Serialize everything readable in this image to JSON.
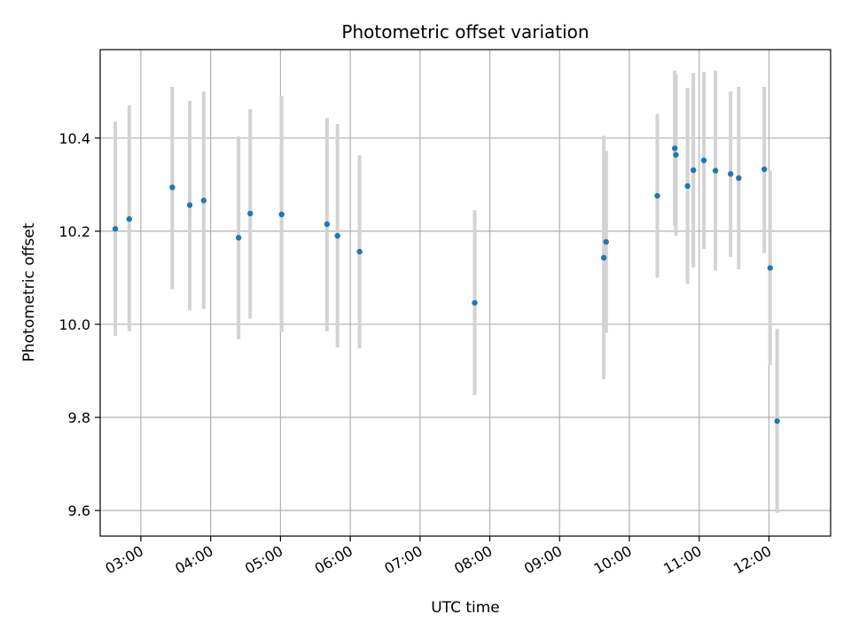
{
  "chart_data": {
    "type": "scatter",
    "title": "Photometric offset variation",
    "xlabel": "UTC time",
    "ylabel": "Photometric offset",
    "x_unit": "UTC hours",
    "xlim": [
      "02:25",
      "12:53"
    ],
    "ylim": [
      9.545,
      10.59
    ],
    "grid": true,
    "x_ticks": [
      "03:00",
      "04:00",
      "05:00",
      "06:00",
      "07:00",
      "08:00",
      "09:00",
      "10:00",
      "11:00",
      "12:00"
    ],
    "y_ticks": [
      "9.6",
      "9.8",
      "10.0",
      "10.2",
      "10.4"
    ],
    "colors": {
      "point": "#1f77b4",
      "errorbar": "#d3d3d3",
      "grid": "#b0b0b0"
    },
    "points": [
      {
        "x": "02:38",
        "y": 10.205,
        "ylow": 9.975,
        "yhigh": 10.435
      },
      {
        "x": "02:50",
        "y": 10.226,
        "ylow": 9.985,
        "yhigh": 10.47
      },
      {
        "x": "03:27",
        "y": 10.294,
        "ylow": 10.075,
        "yhigh": 10.51
      },
      {
        "x": "03:42",
        "y": 10.256,
        "ylow": 10.03,
        "yhigh": 10.48
      },
      {
        "x": "03:54",
        "y": 10.266,
        "ylow": 10.033,
        "yhigh": 10.5
      },
      {
        "x": "04:24",
        "y": 10.186,
        "ylow": 9.968,
        "yhigh": 10.404
      },
      {
        "x": "04:34",
        "y": 10.238,
        "ylow": 10.012,
        "yhigh": 10.462
      },
      {
        "x": "05:01",
        "y": 10.236,
        "ylow": 9.983,
        "yhigh": 10.49
      },
      {
        "x": "05:40",
        "y": 10.215,
        "ylow": 9.985,
        "yhigh": 10.443
      },
      {
        "x": "05:49",
        "y": 10.19,
        "ylow": 9.95,
        "yhigh": 10.43
      },
      {
        "x": "06:08",
        "y": 10.156,
        "ylow": 9.948,
        "yhigh": 10.363
      },
      {
        "x": "07:47",
        "y": 10.046,
        "ylow": 9.848,
        "yhigh": 10.245
      },
      {
        "x": "09:38",
        "y": 10.143,
        "ylow": 9.882,
        "yhigh": 10.405
      },
      {
        "x": "09:40",
        "y": 10.177,
        "ylow": 9.982,
        "yhigh": 10.372
      },
      {
        "x": "10:24",
        "y": 10.276,
        "ylow": 10.1,
        "yhigh": 10.452
      },
      {
        "x": "10:39",
        "y": 10.378,
        "ylow": 10.212,
        "yhigh": 10.545
      },
      {
        "x": "10:40",
        "y": 10.364,
        "ylow": 10.19,
        "yhigh": 10.537
      },
      {
        "x": "10:50",
        "y": 10.297,
        "ylow": 10.087,
        "yhigh": 10.508
      },
      {
        "x": "10:55",
        "y": 10.331,
        "ylow": 10.122,
        "yhigh": 10.54
      },
      {
        "x": "11:04",
        "y": 10.352,
        "ylow": 10.162,
        "yhigh": 10.542
      },
      {
        "x": "11:14",
        "y": 10.33,
        "ylow": 10.115,
        "yhigh": 10.545
      },
      {
        "x": "11:27",
        "y": 10.323,
        "ylow": 10.145,
        "yhigh": 10.5
      },
      {
        "x": "11:34",
        "y": 10.314,
        "ylow": 10.118,
        "yhigh": 10.51
      },
      {
        "x": "11:56",
        "y": 10.333,
        "ylow": 10.153,
        "yhigh": 10.51
      },
      {
        "x": "12:01",
        "y": 10.121,
        "ylow": 9.912,
        "yhigh": 10.33
      },
      {
        "x": "12:07",
        "y": 9.792,
        "ylow": 9.595,
        "yhigh": 9.99
      }
    ]
  }
}
